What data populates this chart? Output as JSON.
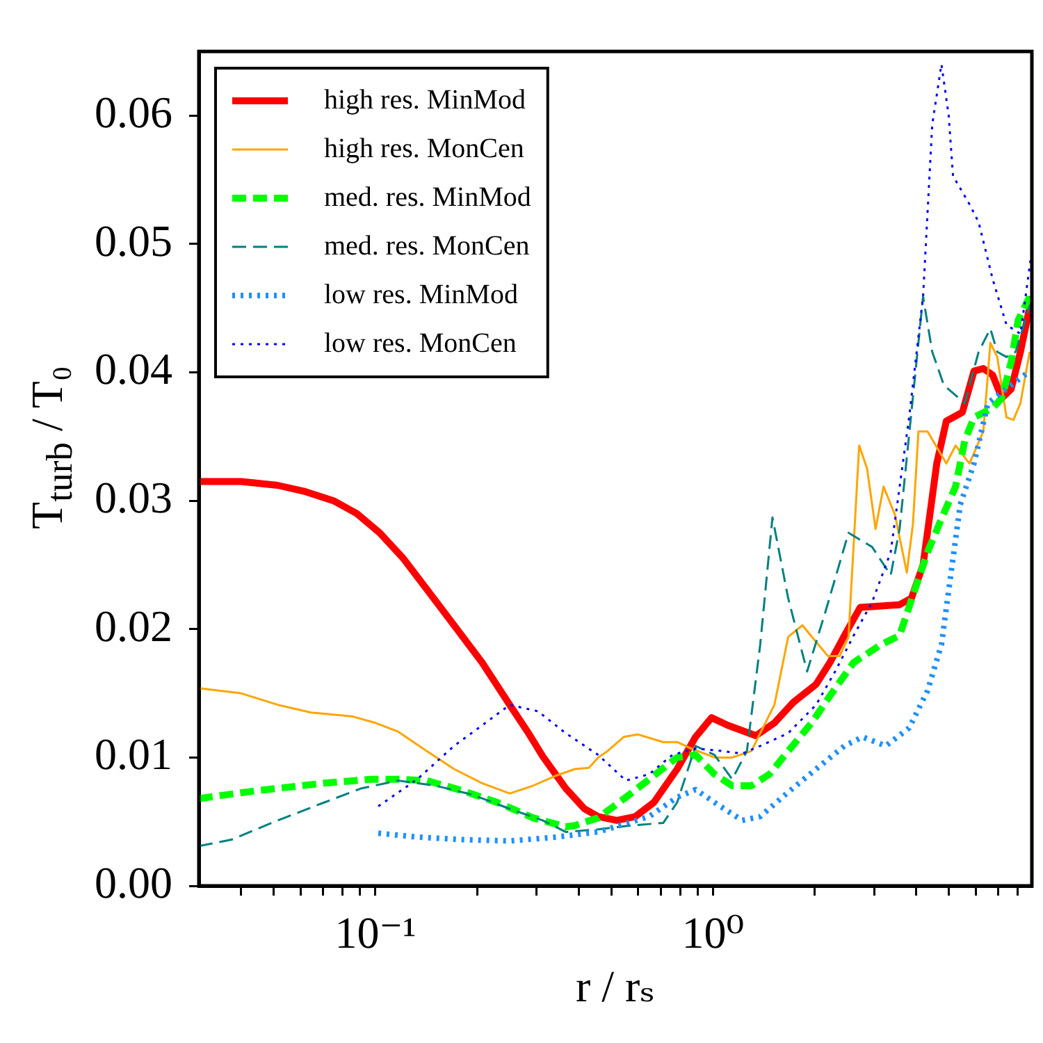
{
  "chart_data": {
    "type": "line",
    "xlabel": "r / rₛ",
    "ylabel": "T$_{turb}$ / T₀",
    "log": "x",
    "legend": "top left",
    "xlim": [
      0.03,
      8.8
    ],
    "ylim": [
      0,
      0.065
    ],
    "xticks": [
      {
        "value": 0.04,
        "label": null
      },
      {
        "value": 0.05,
        "label": null
      },
      {
        "value": 0.06,
        "label": null
      },
      {
        "value": 0.07,
        "label": null
      },
      {
        "value": 0.08,
        "label": null
      },
      {
        "value": 0.09,
        "label": null
      },
      {
        "value": 0.1,
        "label": "10⁻¹"
      },
      {
        "value": 0.2,
        "label": null
      },
      {
        "value": 0.3,
        "label": null
      },
      {
        "value": 0.4,
        "label": null
      },
      {
        "value": 0.5,
        "label": null
      },
      {
        "value": 0.6,
        "label": null
      },
      {
        "value": 0.7,
        "label": null
      },
      {
        "value": 0.8,
        "label": null
      },
      {
        "value": 0.9,
        "label": null
      },
      {
        "value": 1,
        "label": "10⁰"
      },
      {
        "value": 2,
        "label": null
      },
      {
        "value": 3,
        "label": null
      },
      {
        "value": 4,
        "label": null
      },
      {
        "value": 5,
        "label": null
      },
      {
        "value": 6,
        "label": null
      },
      {
        "value": 7,
        "label": null
      },
      {
        "value": 8,
        "label": null
      }
    ],
    "yticks": [
      {
        "value": 0,
        "label": "0.00"
      },
      {
        "value": 0.01,
        "label": "0.01"
      },
      {
        "value": 0.02,
        "label": "0.02"
      },
      {
        "value": 0.03,
        "label": "0.03"
      },
      {
        "value": 0.04,
        "label": "0.04"
      },
      {
        "value": 0.05,
        "label": "0.05"
      },
      {
        "value": 0.06,
        "label": "0.06"
      }
    ],
    "series": [
      {
        "name": "high res. MinMod",
        "color": "#ff0000",
        "line_style": "solid",
        "x": [
          0.03,
          0.04,
          0.0514,
          0.0622,
          0.0752,
          0.0881,
          0.103,
          0.121,
          0.142,
          0.171,
          0.207,
          0.25,
          0.284,
          0.313,
          0.366,
          0.416,
          0.457,
          0.519,
          0.589,
          0.668,
          0.783,
          0.888,
          0.99,
          1.108,
          1.34,
          1.52,
          1.73,
          2.02,
          2.22,
          2.45,
          2.73,
          3.15,
          3.57,
          3.87,
          4.19,
          4.6,
          4.91,
          5.48,
          5.93,
          6.32,
          6.73,
          7.17,
          7.64,
          8.14,
          8.8
        ],
        "values": [
          0.0315,
          0.0315,
          0.0312,
          0.0307,
          0.03,
          0.029,
          0.0275,
          0.0255,
          0.0231,
          0.0203,
          0.0174,
          0.0141,
          0.0119,
          0.0101,
          0.0076,
          0.006,
          0.0054,
          0.0051,
          0.0054,
          0.0065,
          0.0091,
          0.0116,
          0.0131,
          0.0125,
          0.0117,
          0.0127,
          0.0143,
          0.0157,
          0.0174,
          0.0195,
          0.0217,
          0.0218,
          0.0219,
          0.0224,
          0.025,
          0.0329,
          0.0362,
          0.0369,
          0.0401,
          0.0403,
          0.0398,
          0.038,
          0.0387,
          0.0416,
          0.0459
        ]
      },
      {
        "name": "high res. MonCen",
        "color": "#ffa500",
        "line_style": "solid",
        "x": [
          0.03,
          0.04,
          0.0514,
          0.0645,
          0.0853,
          0.1,
          0.117,
          0.142,
          0.171,
          0.207,
          0.25,
          0.293,
          0.344,
          0.39,
          0.429,
          0.457,
          0.487,
          0.544,
          0.598,
          0.712,
          0.783,
          0.861,
          1.01,
          1.14,
          1.3,
          1.38,
          1.52,
          1.67,
          1.84,
          2.02,
          2.19,
          2.37,
          2.52,
          2.71,
          2.86,
          3.03,
          3.2,
          3.46,
          3.75,
          3.91,
          4.06,
          4.32,
          4.91,
          5.23,
          5.75,
          6.32,
          6.63,
          6.95,
          7.4,
          7.76,
          8.14,
          8.67
        ],
        "values": [
          0.0154,
          0.015,
          0.0141,
          0.0135,
          0.0132,
          0.0127,
          0.012,
          0.0105,
          0.0091,
          0.008,
          0.0072,
          0.0078,
          0.0086,
          0.0091,
          0.0092,
          0.01,
          0.0105,
          0.0116,
          0.0118,
          0.0112,
          0.0112,
          0.0107,
          0.01,
          0.01,
          0.0105,
          0.0119,
          0.0141,
          0.0194,
          0.0203,
          0.019,
          0.0179,
          0.0179,
          0.0194,
          0.0343,
          0.0325,
          0.0278,
          0.0311,
          0.0289,
          0.0244,
          0.0282,
          0.0354,
          0.0354,
          0.0329,
          0.0343,
          0.0329,
          0.0354,
          0.0423,
          0.0412,
          0.0365,
          0.0363,
          0.0376,
          0.0416
        ]
      },
      {
        "name": "med. res. MinMod",
        "color": "#00ff00",
        "line_style": "dashed",
        "x": [
          0.03,
          0.044,
          0.0706,
          0.0969,
          0.117,
          0.142,
          0.182,
          0.235,
          0.293,
          0.366,
          0.39,
          0.457,
          0.552,
          0.647,
          0.783,
          0.888,
          1.01,
          1.14,
          1.3,
          1.47,
          1.67,
          1.96,
          2.22,
          2.61,
          3.15,
          3.57,
          3.93,
          4.32,
          4.75,
          5.23,
          5.57,
          5.93,
          6.73,
          7.17,
          7.64,
          8.02,
          8.67
        ],
        "values": [
          0.0068,
          0.0074,
          0.008,
          0.0083,
          0.0083,
          0.0082,
          0.0074,
          0.0064,
          0.0053,
          0.0046,
          0.0047,
          0.0053,
          0.0069,
          0.0083,
          0.01,
          0.0102,
          0.0087,
          0.0078,
          0.0078,
          0.0087,
          0.0105,
          0.0127,
          0.0148,
          0.0174,
          0.0188,
          0.0195,
          0.0228,
          0.026,
          0.0286,
          0.0311,
          0.0347,
          0.0365,
          0.0372,
          0.038,
          0.0408,
          0.0441,
          0.0459
        ]
      },
      {
        "name": "med. res. MonCen",
        "color": "#008080",
        "line_style": "dashed",
        "x": [
          0.03,
          0.0375,
          0.0514,
          0.0706,
          0.091,
          0.117,
          0.151,
          0.194,
          0.25,
          0.313,
          0.366,
          0.457,
          0.57,
          0.712,
          0.783,
          0.888,
          1.01,
          1.14,
          1.26,
          1.38,
          1.5,
          1.67,
          1.9,
          2.15,
          2.52,
          2.96,
          3.36,
          3.57,
          4.19,
          4.46,
          4.83,
          5.57,
          6.12,
          6.63,
          6.95,
          7.4,
          7.88,
          8.67
        ],
        "values": [
          0.0031,
          0.0036,
          0.0051,
          0.0065,
          0.0076,
          0.0082,
          0.0078,
          0.0071,
          0.006,
          0.0051,
          0.0042,
          0.0044,
          0.0047,
          0.0049,
          0.0065,
          0.0109,
          0.0102,
          0.0083,
          0.0105,
          0.0188,
          0.0287,
          0.0224,
          0.0167,
          0.0213,
          0.0275,
          0.0264,
          0.0242,
          0.0278,
          0.0459,
          0.0416,
          0.039,
          0.0376,
          0.0416,
          0.0434,
          0.0416,
          0.0412,
          0.0416,
          0.0452
        ]
      },
      {
        "name": "low res. MinMod",
        "color": "#1e90ff",
        "line_style": "dotted",
        "x": [
          0.102,
          0.133,
          0.182,
          0.25,
          0.344,
          0.457,
          0.647,
          0.783,
          0.888,
          1.01,
          1.22,
          1.38,
          1.67,
          2.02,
          2.45,
          2.77,
          3.25,
          3.81,
          4.32,
          4.75,
          5.06,
          5.4,
          5.93,
          6.52,
          7.64,
          8.67
        ],
        "values": [
          0.0041,
          0.0038,
          0.0036,
          0.0035,
          0.0038,
          0.0042,
          0.0054,
          0.0069,
          0.0075,
          0.0065,
          0.0051,
          0.0054,
          0.0073,
          0.0091,
          0.0109,
          0.0116,
          0.0109,
          0.0123,
          0.0152,
          0.0188,
          0.0242,
          0.0297,
          0.0329,
          0.0376,
          0.039,
          0.0401
        ]
      },
      {
        "name": "low res. MonCen",
        "color": "#0000ff",
        "line_style": "dotted",
        "x": [
          0.102,
          0.133,
          0.171,
          0.207,
          0.25,
          0.303,
          0.366,
          0.457,
          0.552,
          0.647,
          0.758,
          0.888,
          1.07,
          1.22,
          1.38,
          1.67,
          2.02,
          2.3,
          2.61,
          2.96,
          3.36,
          3.81,
          4.19,
          4.46,
          4.75,
          4.99,
          5.14,
          5.75,
          6.12,
          6.73,
          7.4,
          8.14,
          8.8
        ],
        "values": [
          0.0062,
          0.0083,
          0.0109,
          0.0125,
          0.0141,
          0.0136,
          0.0119,
          0.0102,
          0.0082,
          0.0087,
          0.0102,
          0.0107,
          0.0105,
          0.0103,
          0.0109,
          0.0119,
          0.0141,
          0.0167,
          0.0195,
          0.0221,
          0.026,
          0.0365,
          0.0459,
          0.0593,
          0.064,
          0.06,
          0.0553,
          0.0531,
          0.0517,
          0.0473,
          0.0437,
          0.043,
          0.0495
        ]
      }
    ]
  }
}
